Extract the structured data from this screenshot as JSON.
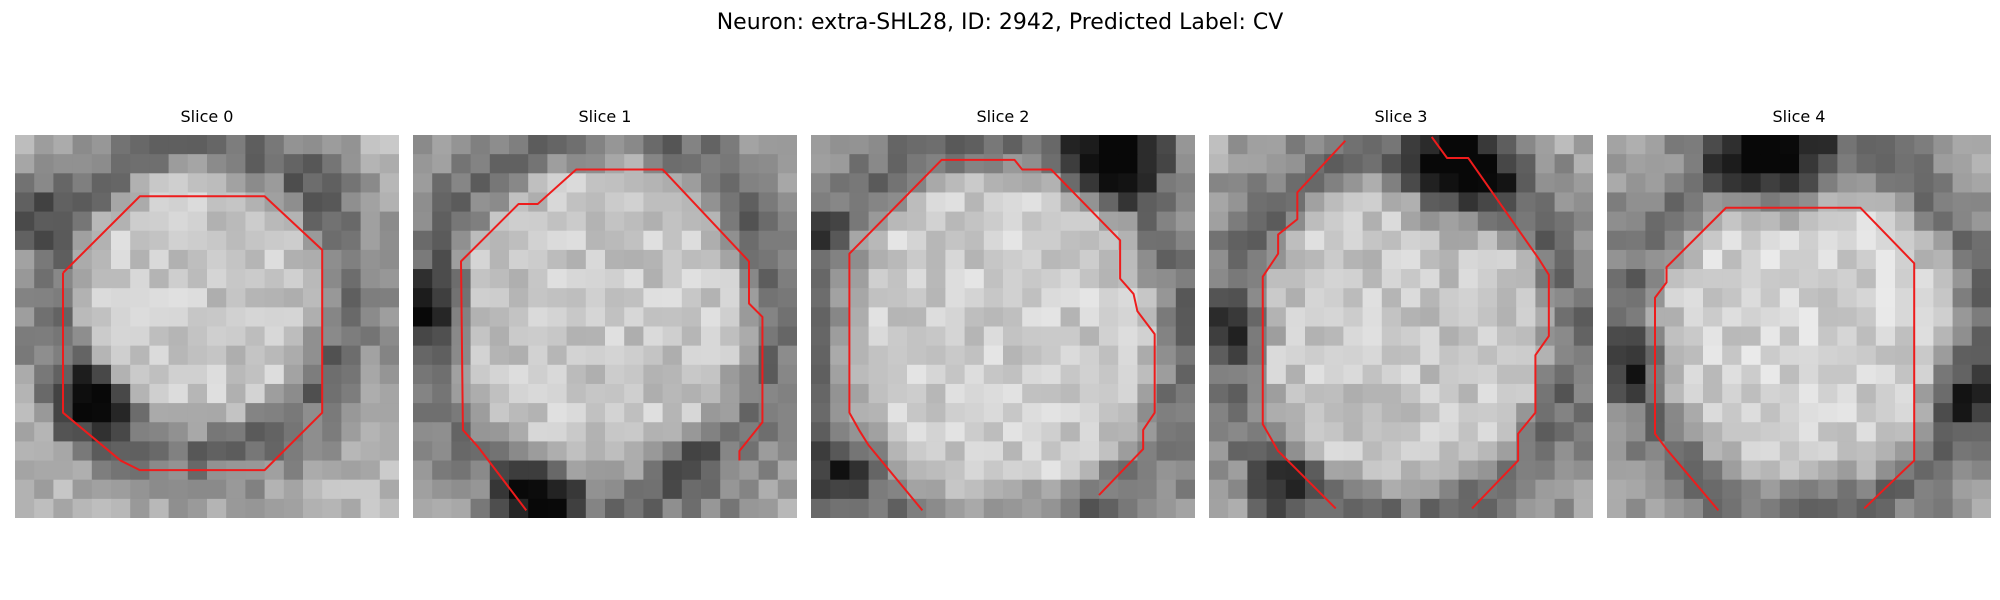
{
  "figure": {
    "title": "Neuron: extra-SHL28, ID: 2942, Predicted Label: CV"
  },
  "colors": {
    "contour": "#ee1c1c"
  },
  "slices": [
    {
      "title": "Slice 0",
      "cell": {
        "cx": 9.6,
        "cy": 8.5,
        "rx": 6.8,
        "ry": 7.2,
        "brightness": 0.78
      },
      "dark_spots": [
        {
          "x": 4,
          "y": 14,
          "r": 3,
          "strength": 0.55
        },
        {
          "x": 1,
          "y": 4,
          "r": 2.5,
          "strength": 0.35
        },
        {
          "x": 16,
          "y": 2,
          "r": 2,
          "strength": 0.2
        }
      ],
      "contour_segments": [
        [
          [
            2.5,
            7.2
          ],
          [
            6.5,
            3.2
          ],
          [
            13,
            3.2
          ],
          [
            16,
            6
          ],
          [
            16,
            14.5
          ],
          [
            13,
            17.5
          ],
          [
            6.5,
            17.5
          ],
          [
            5.5,
            17
          ],
          [
            2.5,
            14.5
          ],
          [
            2.5,
            7.2
          ]
        ]
      ]
    },
    {
      "title": "Slice 1",
      "cell": {
        "cx": 9.8,
        "cy": 9.5,
        "rx": 8.2,
        "ry": 8.8,
        "brightness": 0.78
      },
      "dark_spots": [
        {
          "x": 6.5,
          "y": 19.3,
          "r": 3,
          "strength": 0.6
        },
        {
          "x": 1,
          "y": 9,
          "r": 3,
          "strength": 0.4
        },
        {
          "x": 14,
          "y": 17,
          "r": 2.5,
          "strength": 0.3
        }
      ],
      "contour_segments": [
        [
          [
            5.9,
            19.6
          ],
          [
            3.4,
            16.3
          ],
          [
            2.6,
            15.4
          ],
          [
            2.5,
            6.6
          ],
          [
            5.5,
            3.6
          ],
          [
            6.5,
            3.6
          ],
          [
            8.5,
            1.8
          ],
          [
            13,
            1.8
          ],
          [
            17.5,
            6.6
          ],
          [
            17.5,
            8.8
          ],
          [
            18.2,
            9.5
          ],
          [
            18.2,
            15
          ],
          [
            17,
            16.5
          ],
          [
            17,
            17
          ]
        ]
      ]
    },
    {
      "title": "Slice 2",
      "cell": {
        "cx": 9.8,
        "cy": 10.5,
        "rx": 8.8,
        "ry": 9.2,
        "brightness": 0.8
      },
      "dark_spots": [
        {
          "x": 16,
          "y": 0.5,
          "r": 4,
          "strength": 0.7
        },
        {
          "x": 1,
          "y": 18,
          "r": 2.5,
          "strength": 0.45
        },
        {
          "x": 0.5,
          "y": 5,
          "r": 2,
          "strength": 0.3
        }
      ],
      "contour_segments": [
        [
          [
            5.8,
            19.6
          ],
          [
            3,
            16.2
          ],
          [
            2.5,
            15.4
          ],
          [
            2,
            14.5
          ],
          [
            2,
            6.2
          ],
          [
            6.8,
            1.3
          ],
          [
            10.6,
            1.3
          ],
          [
            11,
            1.8
          ],
          [
            12.5,
            1.8
          ],
          [
            16.1,
            5.5
          ],
          [
            16.1,
            7.5
          ],
          [
            16.8,
            8.3
          ],
          [
            17,
            9.2
          ],
          [
            17.9,
            10.4
          ],
          [
            17.9,
            14.5
          ],
          [
            17.3,
            15.4
          ],
          [
            17.3,
            16.4
          ],
          [
            15,
            18.8
          ]
        ]
      ]
    },
    {
      "title": "Slice 3",
      "cell": {
        "cx": 10,
        "cy": 10.5,
        "rx": 8.2,
        "ry": 8.6,
        "brightness": 0.78
      },
      "dark_spots": [
        {
          "x": 13,
          "y": 1.8,
          "r": 4,
          "strength": 0.75
        },
        {
          "x": 1.5,
          "y": 10,
          "r": 2.5,
          "strength": 0.4
        },
        {
          "x": 4,
          "y": 18.5,
          "r": 2.5,
          "strength": 0.35
        }
      ],
      "contour_segments": [
        [
          [
            6.6,
            19.5
          ],
          [
            3.6,
            16.5
          ],
          [
            2.8,
            15.1
          ],
          [
            2.8,
            7.4
          ],
          [
            3.6,
            6.2
          ],
          [
            3.6,
            5.2
          ],
          [
            4.6,
            4.4
          ],
          [
            4.6,
            3
          ],
          [
            7.1,
            0.3
          ]
        ],
        [
          [
            11.6,
            0.1
          ],
          [
            12.4,
            1.2
          ],
          [
            13.5,
            1.2
          ],
          [
            17.2,
            6.5
          ],
          [
            17.7,
            7.3
          ],
          [
            17.7,
            10.5
          ],
          [
            17,
            11.5
          ],
          [
            17,
            14.5
          ],
          [
            16.1,
            15.6
          ],
          [
            16.1,
            17
          ],
          [
            13.7,
            19.5
          ]
        ]
      ]
    },
    {
      "title": "Slice 4",
      "cell": {
        "cx": 10.4,
        "cy": 10.2,
        "rx": 8.2,
        "ry": 8.4,
        "brightness": 0.82
      },
      "dark_spots": [
        {
          "x": 8.5,
          "y": 1.2,
          "r": 4.2,
          "strength": 0.7
        },
        {
          "x": 18.5,
          "y": 13.5,
          "r": 3,
          "strength": 0.35
        },
        {
          "x": 1.5,
          "y": 12,
          "r": 2.5,
          "strength": 0.3
        }
      ],
      "contour_segments": [
        [
          [
            5.8,
            19.6
          ],
          [
            3.1,
            16.4
          ],
          [
            2.5,
            15.6
          ],
          [
            2.5,
            8.5
          ],
          [
            3.1,
            7.7
          ],
          [
            3.1,
            6.9
          ],
          [
            6.2,
            3.8
          ],
          [
            13.2,
            3.8
          ],
          [
            16,
            6.7
          ],
          [
            16,
            17
          ],
          [
            13.4,
            19.5
          ]
        ]
      ]
    }
  ]
}
